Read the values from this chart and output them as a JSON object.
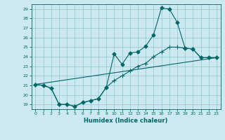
{
  "xlabel": "Humidex (Indice chaleur)",
  "background_color": "#cce8f0",
  "grid_color": "#99ccd8",
  "line_color": "#006666",
  "xlim": [
    -0.5,
    23.5
  ],
  "ylim": [
    18.5,
    29.5
  ],
  "xticks": [
    0,
    1,
    2,
    3,
    4,
    5,
    6,
    7,
    8,
    9,
    10,
    11,
    12,
    13,
    14,
    15,
    16,
    17,
    18,
    19,
    20,
    21,
    22,
    23
  ],
  "yticks": [
    19,
    20,
    21,
    22,
    23,
    24,
    25,
    26,
    27,
    28,
    29
  ],
  "line1_x": [
    0,
    1,
    2,
    3,
    4,
    5,
    6,
    7,
    8,
    9,
    10,
    11,
    12,
    13,
    14,
    15,
    16,
    17,
    18,
    19,
    20,
    21,
    22,
    23
  ],
  "line1_y": [
    21.1,
    21.0,
    20.7,
    19.0,
    19.0,
    18.8,
    19.2,
    19.4,
    19.6,
    20.8,
    24.3,
    23.2,
    24.4,
    24.5,
    25.1,
    26.3,
    29.1,
    29.0,
    27.6,
    24.9,
    24.8,
    23.9,
    23.9,
    23.9
  ],
  "line2_x": [
    0,
    1,
    2,
    3,
    4,
    5,
    6,
    7,
    8,
    9,
    10,
    11,
    12,
    13,
    14,
    15,
    16,
    17,
    18,
    19,
    20,
    21,
    22,
    23
  ],
  "line2_y": [
    21.1,
    21.0,
    20.7,
    19.0,
    19.0,
    18.8,
    19.2,
    19.4,
    19.6,
    20.8,
    21.5,
    22.0,
    22.5,
    23.0,
    23.3,
    24.0,
    24.5,
    25.0,
    25.0,
    24.9,
    24.8,
    23.9,
    23.9,
    23.9
  ],
  "line3_x": [
    0,
    23
  ],
  "line3_y": [
    21.1,
    23.9
  ]
}
